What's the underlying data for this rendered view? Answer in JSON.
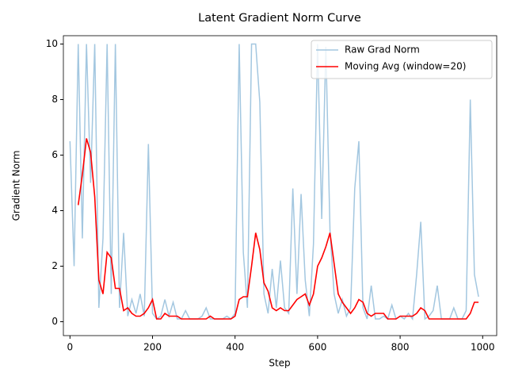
{
  "chart_data": {
    "type": "line",
    "title": "Latent Gradient Norm Curve",
    "x_label": "Step",
    "y_label": "Gradient Norm",
    "x": [
      0,
      10,
      20,
      30,
      40,
      50,
      60,
      70,
      80,
      90,
      100,
      110,
      120,
      130,
      140,
      150,
      160,
      170,
      180,
      190,
      200,
      210,
      220,
      230,
      240,
      250,
      260,
      270,
      280,
      290,
      300,
      310,
      320,
      330,
      340,
      350,
      360,
      370,
      380,
      390,
      400,
      410,
      420,
      430,
      440,
      450,
      460,
      470,
      480,
      490,
      500,
      510,
      520,
      530,
      540,
      550,
      560,
      570,
      580,
      590,
      600,
      610,
      620,
      630,
      640,
      650,
      660,
      670,
      680,
      690,
      700,
      710,
      720,
      730,
      740,
      750,
      760,
      770,
      780,
      790,
      800,
      810,
      820,
      830,
      840,
      850,
      860,
      870,
      880,
      890,
      900,
      910,
      920,
      930,
      940,
      950,
      960,
      970,
      980,
      990
    ],
    "series": [
      {
        "name": "Raw Grad Norm",
        "color": "#a3c7e0",
        "values": [
          6.5,
          2,
          10,
          3,
          10,
          5,
          10,
          0.5,
          3,
          10,
          1,
          10,
          0.5,
          3.2,
          0.2,
          0.8,
          0.3,
          1,
          0.2,
          6.4,
          0.3,
          0.1,
          0.2,
          0.8,
          0.2,
          0.7,
          0.1,
          0.1,
          0.4,
          0.1,
          0.1,
          0.1,
          0.2,
          0.5,
          0.1,
          0.1,
          0.1,
          0.1,
          0.2,
          0.1,
          0.3,
          10,
          2.5,
          0.5,
          10,
          10,
          7.9,
          1,
          0.3,
          1.9,
          0.5,
          2.2,
          0.5,
          0.3,
          4.8,
          1,
          4.6,
          1.5,
          0.2,
          2.8,
          10,
          3.7,
          9.9,
          3.3,
          1,
          0.3,
          0.8,
          0.2,
          0.5,
          4.8,
          6.5,
          0.5,
          0.1,
          1.3,
          0.1,
          0.1,
          0.2,
          0.1,
          0.6,
          0.1,
          0.2,
          0.1,
          0.3,
          0.1,
          1.7,
          3.6,
          0.1,
          0.2,
          0.4,
          1.3,
          0.1,
          0.1,
          0.1,
          0.5,
          0.1,
          0.1,
          0.4,
          8,
          1.7,
          0.9
        ]
      },
      {
        "name": "Moving Avg (window=20)",
        "color": "#ff0000",
        "values": [
          null,
          null,
          4.2,
          5.3,
          6.6,
          6.1,
          4.5,
          1.5,
          1.0,
          2.5,
          2.3,
          1.2,
          1.2,
          0.4,
          0.5,
          0.3,
          0.2,
          0.2,
          0.3,
          0.5,
          0.8,
          0.1,
          0.1,
          0.3,
          0.2,
          0.2,
          0.2,
          0.1,
          0.1,
          0.1,
          0.1,
          0.1,
          0.1,
          0.1,
          0.2,
          0.1,
          0.1,
          0.1,
          0.1,
          0.1,
          0.2,
          0.8,
          0.9,
          0.9,
          2.0,
          3.2,
          2.6,
          1.4,
          1.1,
          0.5,
          0.4,
          0.5,
          0.4,
          0.4,
          0.6,
          0.8,
          0.9,
          1.0,
          0.6,
          1.0,
          2.0,
          2.3,
          2.7,
          3.2,
          2.1,
          1.0,
          0.7,
          0.5,
          0.3,
          0.5,
          0.8,
          0.7,
          0.3,
          0.2,
          0.3,
          0.3,
          0.3,
          0.1,
          0.1,
          0.1,
          0.2,
          0.2,
          0.2,
          0.2,
          0.3,
          0.5,
          0.4,
          0.1,
          0.1,
          0.1,
          0.1,
          0.1,
          0.1,
          0.1,
          0.1,
          0.1,
          0.1,
          0.3,
          0.7,
          0.7
        ]
      }
    ],
    "xlim": [
      -16,
      1034
    ],
    "ylim": [
      -0.5,
      10.3
    ],
    "xticks": [
      0,
      200,
      400,
      600,
      800,
      1000
    ],
    "yticks": [
      0,
      2,
      4,
      6,
      8,
      10
    ],
    "legend": "upper right"
  }
}
